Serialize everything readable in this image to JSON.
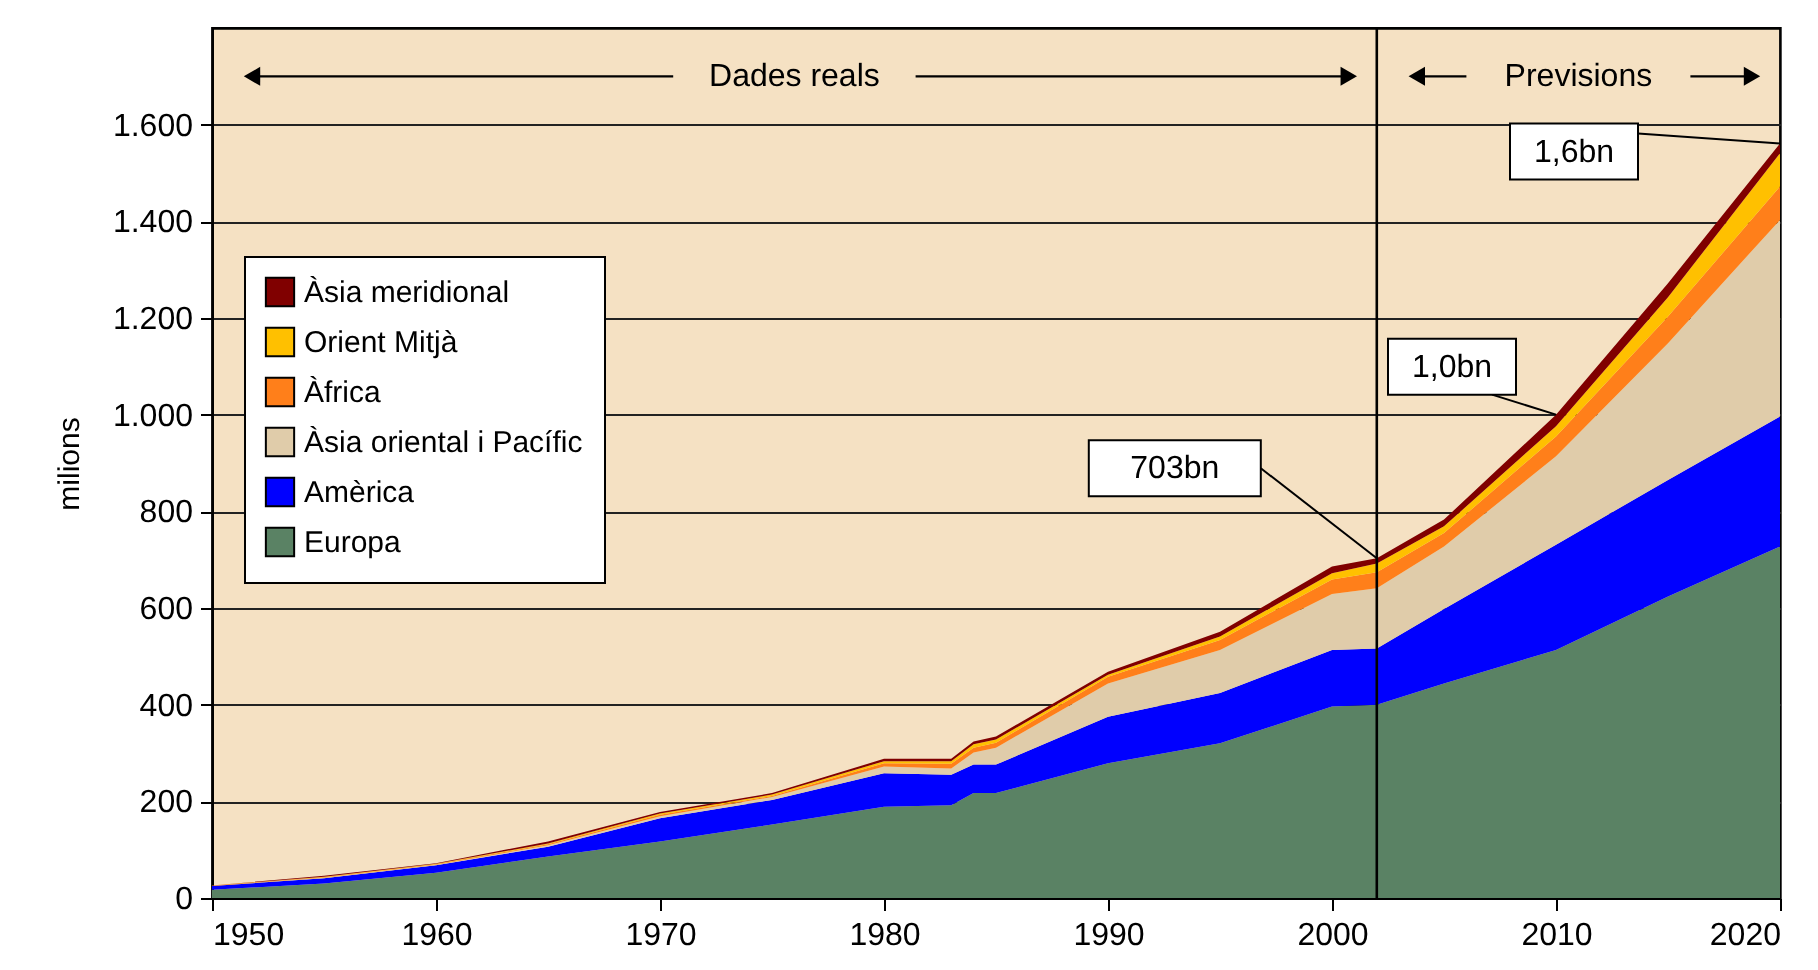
{
  "chart_data": {
    "type": "area",
    "stacked": true,
    "ylabel": "milions",
    "x": [
      1950,
      1955,
      1960,
      1965,
      1970,
      1975,
      1980,
      1983,
      1984,
      1985,
      1990,
      1995,
      2000,
      2002,
      2005,
      2010,
      2015,
      2020
    ],
    "series": [
      {
        "name": "Europa",
        "color": "#5a8264",
        "values": [
          17,
          30,
          52,
          86,
          117,
          152,
          189,
          192,
          217,
          217,
          279,
          320,
          396,
          400,
          444,
          513,
          624,
          727
        ]
      },
      {
        "name": "Amèrica",
        "color": "#0000ff",
        "values": [
          8,
          11,
          16,
          20,
          48,
          51,
          69,
          63,
          59,
          59,
          96,
          104,
          117,
          116,
          154,
          218,
          241,
          269
        ]
      },
      {
        "name": "Àsia oriental i Pacífic",
        "color": "#e0ccaa",
        "values": [
          0,
          1,
          1,
          3,
          4,
          6,
          14,
          13,
          25,
          35,
          69,
          89,
          116,
          125,
          129,
          183,
          283,
          407
        ]
      },
      {
        "name": "Àfrica",
        "color": "#ff7f1a",
        "values": [
          1,
          1,
          1,
          2,
          3,
          2,
          7,
          10,
          10,
          10,
          14,
          21,
          30,
          33,
          28,
          41,
          55,
          69
        ]
      },
      {
        "name": "Orient Mitjà",
        "color": "#ffc000",
        "values": [
          0,
          1,
          1,
          2,
          3,
          3,
          4,
          5,
          7,
          7,
          4,
          7,
          13,
          18,
          14,
          21,
          40,
          69
        ]
      },
      {
        "name": "Àsia meridional",
        "color": "#800000",
        "values": [
          0,
          2,
          1,
          4,
          3,
          3,
          5,
          5,
          6,
          6,
          6,
          10,
          14,
          11,
          14,
          24,
          29,
          20
        ]
      }
    ],
    "xlim": [
      1950,
      2020
    ],
    "xticks": [
      1950,
      1960,
      1970,
      1980,
      1990,
      2000,
      2010,
      2020
    ],
    "ylim": [
      0,
      1800
    ],
    "yticks": [
      0,
      200,
      400,
      600,
      800,
      {
        "value": 1000,
        "label": "1.000"
      },
      {
        "value": 1200,
        "label": "1.200"
      },
      {
        "value": 1400,
        "label": "1.400"
      },
      {
        "value": 1600,
        "label": "1.600"
      }
    ],
    "grid": "y",
    "legend": "top left",
    "ref_lines": [
      {
        "axis": "x",
        "value": 2002
      }
    ],
    "annotations": [
      "Dades reals",
      "Previsions",
      {
        "text": "703bn",
        "x": 2002,
        "y": 703
      },
      {
        "text": "1,0bn",
        "x": 2010,
        "y": 1000
      },
      {
        "text": "1,6bn",
        "x": 2020,
        "y": 1561
      }
    ]
  }
}
